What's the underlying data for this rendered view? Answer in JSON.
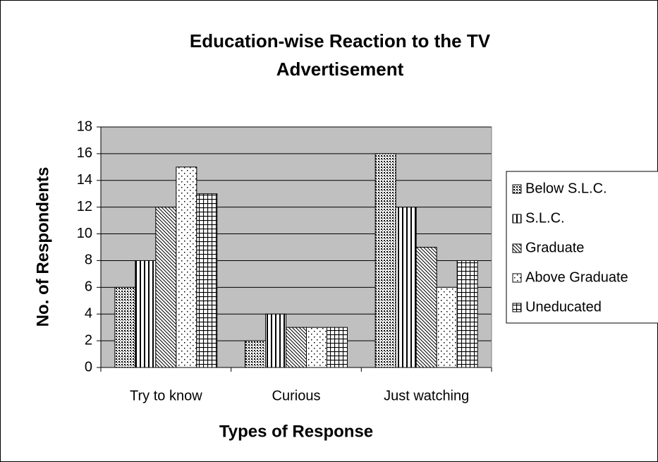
{
  "chart_data": {
    "type": "bar",
    "title": "Education-wise Reaction to the TV Advertisement",
    "x_label": "Types of Response",
    "y_label": "No. of Respondents",
    "categories": [
      "Try to know",
      "Curious",
      "Just watching"
    ],
    "series": [
      {
        "name": "Below S.L.C.",
        "values": [
          6,
          2,
          16
        ]
      },
      {
        "name": "S.L.C.",
        "values": [
          8,
          4,
          12
        ]
      },
      {
        "name": "Graduate",
        "values": [
          12,
          3,
          9
        ]
      },
      {
        "name": "Above Graduate",
        "values": [
          15,
          3,
          6
        ]
      },
      {
        "name": "Uneducated",
        "values": [
          13,
          3,
          8
        ]
      }
    ],
    "ylim": [
      0,
      18
    ],
    "yticks": [
      0,
      2,
      4,
      6,
      8,
      10,
      12,
      14,
      16,
      18
    ],
    "grid": true,
    "legend": "right"
  }
}
